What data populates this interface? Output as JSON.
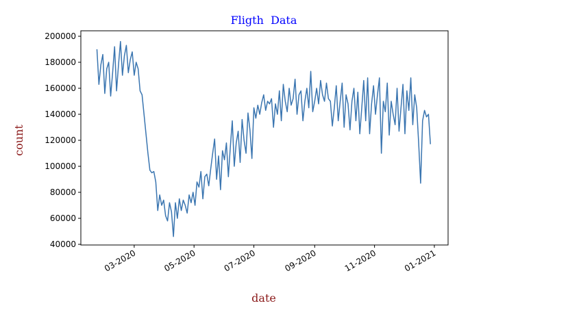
{
  "chart_data": {
    "type": "line",
    "title": "Fligth  Data",
    "title_color": "#0000ff",
    "xlabel": "date",
    "ylabel": "count",
    "label_color": "#8b1a1a",
    "color": "#3a75b0",
    "x": [
      22,
      24,
      26,
      28,
      30,
      32,
      34,
      36,
      38,
      40,
      42,
      44,
      46,
      48,
      50,
      52,
      54,
      56,
      58,
      60,
      62,
      64,
      66,
      68,
      70,
      72,
      74,
      76,
      78,
      80,
      82,
      84,
      86,
      88,
      90,
      92,
      94,
      96,
      98,
      100,
      102,
      104,
      106,
      108,
      110,
      112,
      114,
      116,
      118,
      120,
      122,
      124,
      126,
      128,
      130,
      132,
      134,
      136,
      138,
      140,
      142,
      144,
      146,
      148,
      150,
      152,
      154,
      156,
      158,
      160,
      162,
      164,
      166,
      168,
      170,
      172,
      174,
      176,
      178,
      180,
      182,
      184,
      186,
      188,
      190,
      192,
      194,
      196,
      198,
      200,
      202,
      204,
      206,
      208,
      210,
      212,
      214,
      216,
      218,
      220,
      222,
      224,
      226,
      228,
      230,
      232,
      234,
      236,
      238,
      240,
      242,
      244,
      246,
      248,
      250,
      252,
      254,
      256,
      258,
      260,
      262,
      264,
      266,
      268,
      270,
      272,
      274,
      276,
      278,
      280,
      282,
      284,
      286,
      288,
      290,
      292,
      294,
      296,
      298,
      300,
      302,
      304,
      306,
      308,
      310,
      312,
      314,
      316,
      318,
      320,
      322,
      324,
      326,
      328,
      330,
      332,
      334,
      336,
      338,
      340,
      342,
      344,
      346,
      348,
      350,
      352,
      354,
      356,
      358,
      360,
      362
    ],
    "values": [
      190000,
      163000,
      178000,
      186000,
      156000,
      175000,
      180000,
      154000,
      172000,
      192000,
      158000,
      178000,
      196000,
      170000,
      185000,
      193000,
      172000,
      182000,
      188000,
      170000,
      180000,
      175000,
      158000,
      155000,
      140000,
      125000,
      110000,
      97000,
      95000,
      96000,
      88000,
      66000,
      78000,
      70000,
      74000,
      62000,
      58000,
      72000,
      65000,
      46000,
      72000,
      60000,
      75000,
      66000,
      74000,
      70000,
      64000,
      78000,
      72000,
      80000,
      70000,
      88000,
      84000,
      96000,
      75000,
      92000,
      94000,
      85000,
      98000,
      110000,
      121000,
      90000,
      108000,
      82000,
      112000,
      105000,
      118000,
      92000,
      115000,
      135000,
      100000,
      118000,
      127000,
      103000,
      136000,
      120000,
      110000,
      141000,
      128000,
      106000,
      145000,
      137000,
      147000,
      140000,
      149000,
      155000,
      143000,
      150000,
      148000,
      152000,
      130000,
      148000,
      140000,
      158000,
      135000,
      163000,
      150000,
      142000,
      160000,
      147000,
      152000,
      167000,
      140000,
      155000,
      158000,
      135000,
      150000,
      160000,
      145000,
      173000,
      142000,
      150000,
      160000,
      148000,
      166000,
      155000,
      150000,
      164000,
      152000,
      150000,
      131000,
      145000,
      162000,
      135000,
      150000,
      164000,
      130000,
      155000,
      148000,
      128000,
      150000,
      160000,
      135000,
      157000,
      125000,
      145000,
      166000,
      135000,
      168000,
      125000,
      148000,
      162000,
      140000,
      155000,
      168000,
      110000,
      150000,
      142000,
      164000,
      124000,
      150000,
      140000,
      132000,
      160000,
      127000,
      145000,
      163000,
      125000,
      158000,
      143000,
      168000,
      132000,
      155000,
      145000,
      118000,
      87000,
      135000,
      143000,
      138000,
      140000,
      117000
    ],
    "xlim": [
      5.6,
      380
    ],
    "xticks": [
      {
        "value": 60,
        "label": "03-2020"
      },
      {
        "value": 121,
        "label": "05-2020"
      },
      {
        "value": 182,
        "label": "07-2020"
      },
      {
        "value": 244,
        "label": "09-2020"
      },
      {
        "value": 305,
        "label": "11-2020"
      },
      {
        "value": 366,
        "label": "01-2021"
      }
    ],
    "ylim": [
      39500,
      204200
    ],
    "yticks": [
      40000,
      60000,
      80000,
      100000,
      120000,
      140000,
      160000,
      180000,
      200000
    ]
  }
}
